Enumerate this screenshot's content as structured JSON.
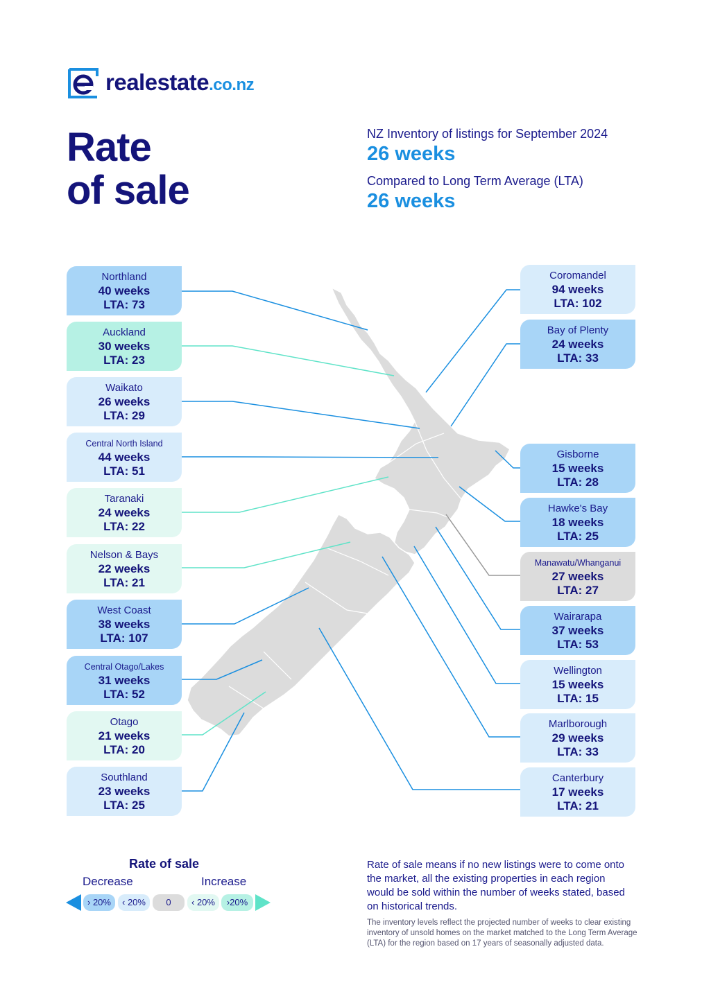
{
  "brand": {
    "name": "realestate",
    "tld": ".co.nz"
  },
  "title_line1": "Rate",
  "title_line2": "of sale",
  "summary": {
    "inventory_label": "NZ Inventory of listings for September 2024",
    "inventory_value": "26 weeks",
    "lta_label": "Compared to Long Term Average (LTA)",
    "lta_value": "26 weeks"
  },
  "regions_left": [
    {
      "name": "Northland",
      "weeks": "40 weeks",
      "lta": "LTA: 73",
      "category": "decrease-strong"
    },
    {
      "name": "Auckland",
      "weeks": "30 weeks",
      "lta": "LTA: 23",
      "category": "increase-strong"
    },
    {
      "name": "Waikato",
      "weeks": "26 weeks",
      "lta": "LTA: 29",
      "category": "decrease-weak"
    },
    {
      "name": "Central North Island",
      "weeks": "44 weeks",
      "lta": "LTA: 51",
      "category": "decrease-weak"
    },
    {
      "name": "Taranaki",
      "weeks": "24 weeks",
      "lta": "LTA: 22",
      "category": "increase-weak"
    },
    {
      "name": "Nelson & Bays",
      "weeks": "22 weeks",
      "lta": "LTA: 21",
      "category": "increase-weak"
    },
    {
      "name": "West Coast",
      "weeks": "38 weeks",
      "lta": "LTA: 107",
      "category": "decrease-strong"
    },
    {
      "name": "Central Otago/Lakes",
      "weeks": "31 weeks",
      "lta": "LTA: 52",
      "category": "decrease-strong"
    },
    {
      "name": "Otago",
      "weeks": "21 weeks",
      "lta": "LTA: 20",
      "category": "increase-weak"
    },
    {
      "name": "Southland",
      "weeks": "23 weeks",
      "lta": "LTA: 25",
      "category": "decrease-weak"
    }
  ],
  "regions_right": [
    {
      "name": "Coromandel",
      "weeks": "94 weeks",
      "lta": "LTA: 102",
      "category": "decrease-weak"
    },
    {
      "name": "Bay of Plenty",
      "weeks": "24 weeks",
      "lta": "LTA: 33",
      "category": "decrease-strong"
    },
    {
      "name": "Gisborne",
      "weeks": "15 weeks",
      "lta": "LTA: 28",
      "category": "decrease-strong"
    },
    {
      "name": "Hawke's Bay",
      "weeks": "18 weeks",
      "lta": "LTA: 25",
      "category": "decrease-strong"
    },
    {
      "name": "Manawatu/Whanganui",
      "weeks": "27 weeks",
      "lta": "LTA: 27",
      "category": "neutral"
    },
    {
      "name": "Wairarapa",
      "weeks": "37 weeks",
      "lta": "LTA: 53",
      "category": "decrease-strong"
    },
    {
      "name": "Wellington",
      "weeks": "15 weeks",
      "lta": "LTA: 15",
      "category": "decrease-weak"
    },
    {
      "name": "Marlborough",
      "weeks": "29 weeks",
      "lta": "LTA: 33",
      "category": "decrease-weak"
    },
    {
      "name": "Canterbury",
      "weeks": "17 weeks",
      "lta": "LTA: 21",
      "category": "decrease-weak"
    }
  ],
  "legend": {
    "title": "Rate of sale",
    "decrease": "Decrease",
    "increase": "Increase",
    "pills": [
      "› 20%",
      "‹ 20%",
      "0",
      "‹ 20%",
      "›20%"
    ]
  },
  "notes": {
    "main": "Rate of sale means if no new listings were to come onto the market, all the existing properties in each region would be sold within the number of weeks stated, based on historical trends.",
    "fine": "The inventory levels reflect the projected number of weeks to clear existing inventory of unsold homes on the market matched to the Long Term Average (LTA) for the region based on 17 years of seasonally adjusted data."
  },
  "colors": {
    "decrease-strong": "#a8d5f7",
    "decrease-weak": "#d8ecfb",
    "neutral": "#dcdcdc",
    "increase-weak": "#e2f8f2",
    "increase-strong": "#b6f1e4",
    "navy": "#14147a",
    "accent": "#1a8fe0"
  }
}
